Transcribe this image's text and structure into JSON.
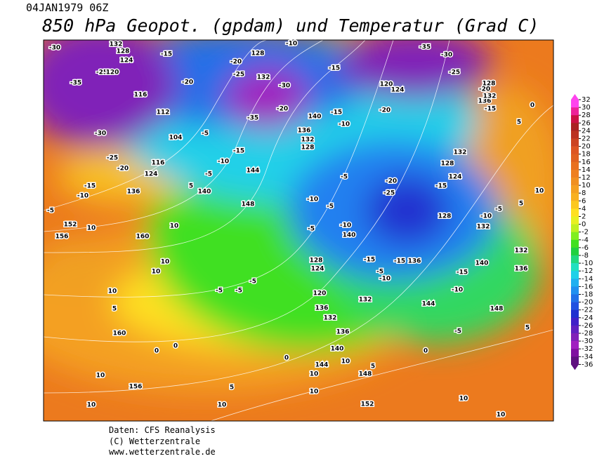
{
  "header": {
    "date": "04JAN1979 06Z",
    "title": "850 hPa Geopot. (gpdam) und  Temperatur (Grad C)"
  },
  "footer": {
    "lines": [
      "Daten: CFS Reanalysis",
      "(C) Wetterzentrale",
      "www.wetterzentrale.de"
    ]
  },
  "colorbar": {
    "ticks": [
      32,
      30,
      28,
      26,
      24,
      22,
      20,
      18,
      16,
      14,
      12,
      10,
      8,
      6,
      4,
      2,
      0,
      -2,
      -4,
      -6,
      -8,
      -10,
      -12,
      -14,
      -16,
      -18,
      -20,
      -22,
      -24,
      -26,
      -28,
      -30,
      -32,
      -34,
      -36
    ],
    "colors": [
      "#ff44ee",
      "#ee2299",
      "#cc1144",
      "#aa2222",
      "#bb3322",
      "#cc4422",
      "#dd5522",
      "#e06020",
      "#e87020",
      "#ee8020",
      "#f09020",
      "#f4a020",
      "#f8b020",
      "#fcc820",
      "#ffe020",
      "#e8f020",
      "#c0f020",
      "#80ee20",
      "#40e020",
      "#20d040",
      "#20d880",
      "#20e0c0",
      "#20d0e8",
      "#20b0f0",
      "#2090f0",
      "#2070e8",
      "#2050e0",
      "#2030d0",
      "#4020c8",
      "#6020c0",
      "#8020b8",
      "#a020c0",
      "#8010a0",
      "#601080"
    ]
  },
  "map": {
    "contour_labels": [
      -30,
      -35,
      -25,
      120,
      124,
      128,
      132,
      -30,
      -25,
      -20,
      116,
      112,
      104,
      116,
      124,
      136,
      -15,
      -10,
      -5,
      152,
      10,
      156,
      160,
      10,
      5,
      140,
      144,
      148,
      -15,
      -10,
      -5,
      -5,
      -20,
      -25,
      -20,
      -35,
      -30,
      132,
      128,
      -20,
      -15,
      -10,
      140,
      136,
      132,
      128,
      -15,
      -10,
      -5,
      -10,
      -5,
      -5,
      140,
      -10,
      128,
      124,
      120,
      136,
      132,
      136,
      140,
      144,
      10,
      148,
      152,
      10,
      10,
      -15,
      -20,
      -20,
      -25,
      -15,
      128,
      124,
      132,
      128,
      -10,
      -5,
      132,
      132,
      136,
      140,
      -15,
      -10,
      144,
      148,
      -5,
      0,
      5,
      10,
      10,
      5,
      0,
      5,
      10,
      5,
      -15,
      136,
      132,
      128,
      -20,
      -25,
      -30,
      -35,
      120,
      124,
      -15,
      -10,
      -5,
      132,
      136,
      -15,
      160,
      10,
      5,
      0,
      0,
      10,
      156,
      10,
      10,
      5,
      0,
      -5,
      -5,
      -5,
      10,
      10
    ]
  }
}
